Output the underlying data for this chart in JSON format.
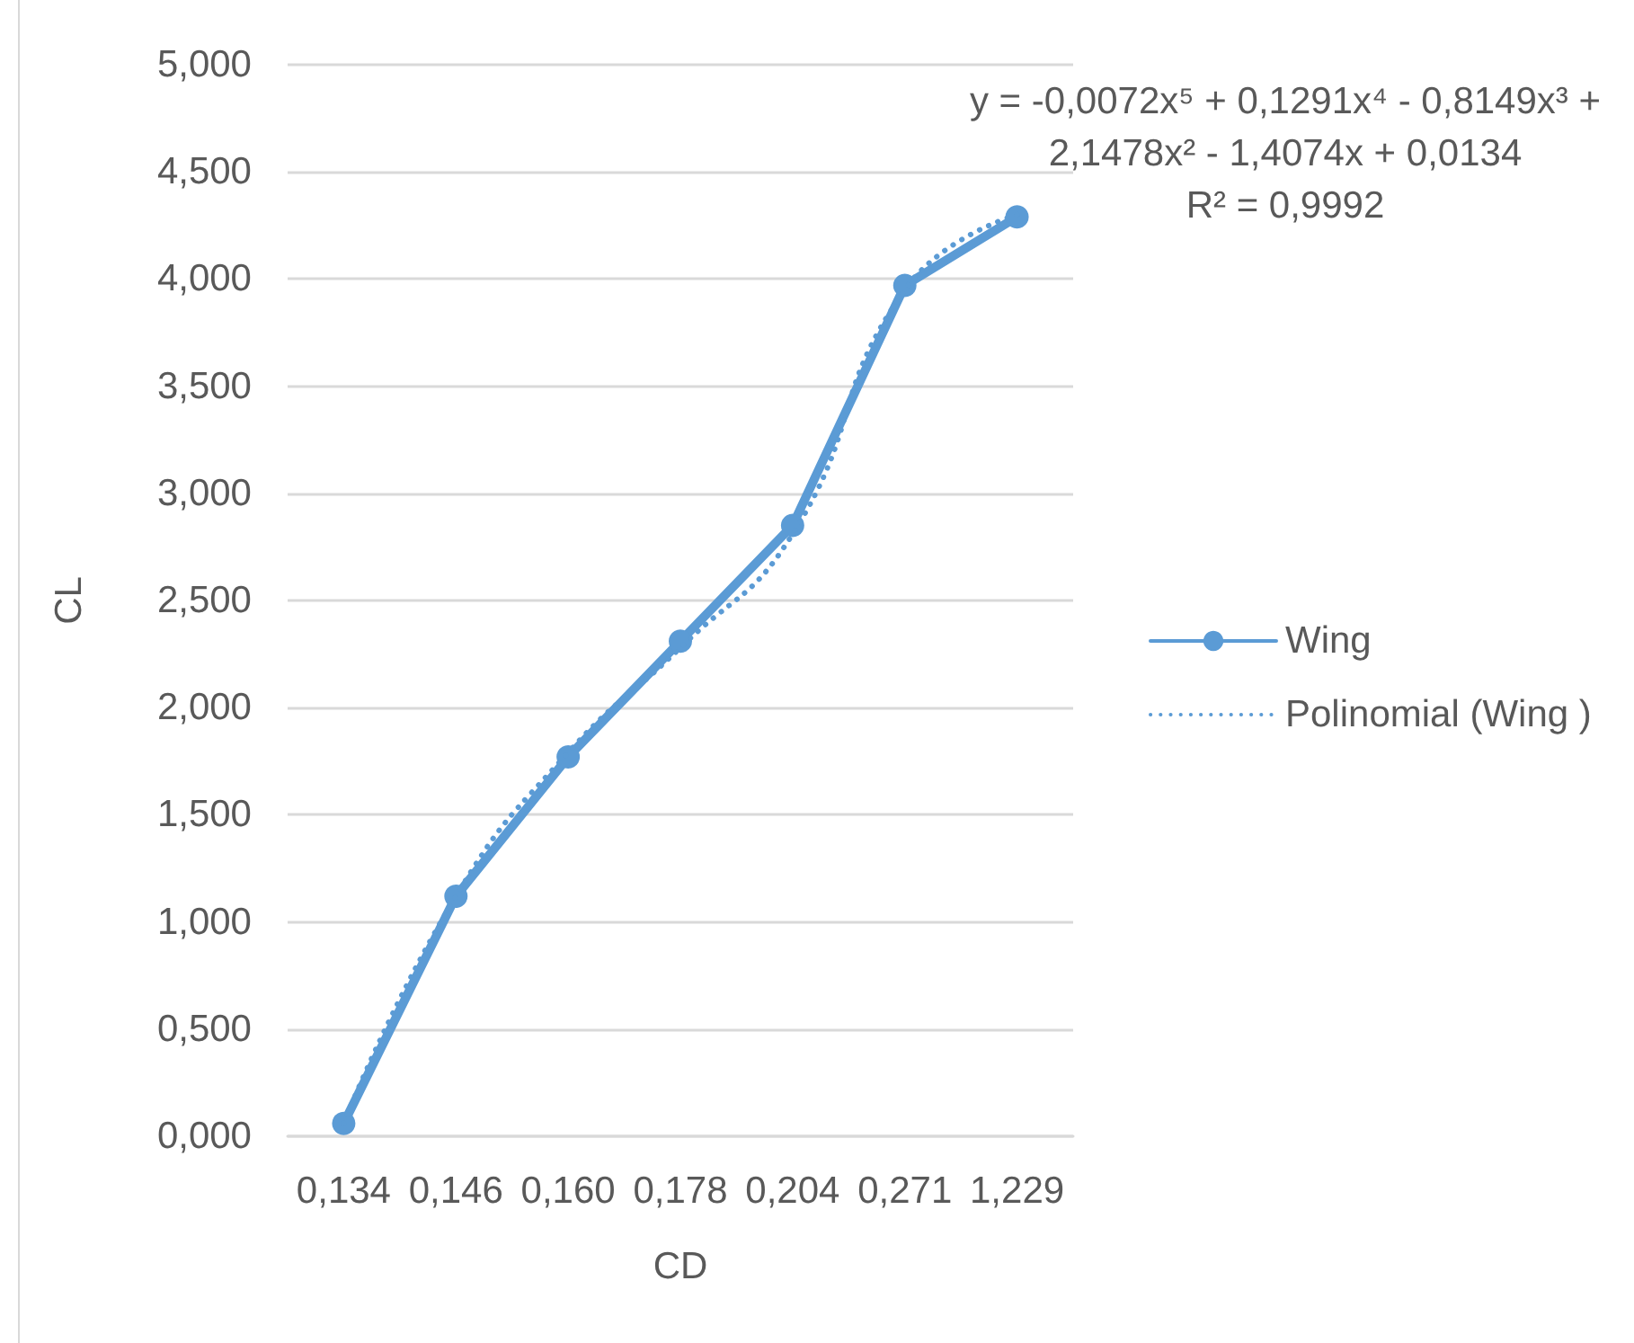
{
  "chart_data": {
    "type": "line",
    "categories": [
      "0,134",
      "0,146",
      "0,160",
      "0,178",
      "0,204",
      "0,271",
      "1,229"
    ],
    "series": [
      {
        "name": "Wing",
        "color": "#5b9bd5",
        "values": [
          0.06,
          1.12,
          1.77,
          2.31,
          2.85,
          3.97,
          4.29
        ],
        "marker": "circle",
        "line_style": "solid"
      },
      {
        "name": "Polinomial (Wing )",
        "color": "#5b9bd5",
        "values": [
          0.06,
          1.12,
          1.79,
          2.28,
          2.81,
          3.95,
          4.3
        ],
        "marker": "none",
        "line_style": "dotted"
      }
    ],
    "xlabel": "CD",
    "ylabel": "CL",
    "ylim": [
      0,
      5
    ],
    "yticks": [
      {
        "value": 0,
        "label": "0,000"
      },
      {
        "value": 0.5,
        "label": "0,500"
      },
      {
        "value": 1,
        "label": "1,000"
      },
      {
        "value": 1.5,
        "label": "1,500"
      },
      {
        "value": 2,
        "label": "2,000"
      },
      {
        "value": 2.5,
        "label": "2,500"
      },
      {
        "value": 3,
        "label": "3,000"
      },
      {
        "value": 3.5,
        "label": "3,500"
      },
      {
        "value": 4,
        "label": "4,000"
      },
      {
        "value": 4.5,
        "label": "4,500"
      },
      {
        "value": 5,
        "label": "5,000"
      }
    ],
    "grid": "y",
    "legend": "right",
    "annotations": [
      "y = -0,0072x⁵ + 0,1291x⁴ - 0,8149x³ + 2,1478x² - 1,4074x + 0,0134",
      "R² = 0,9992"
    ]
  }
}
